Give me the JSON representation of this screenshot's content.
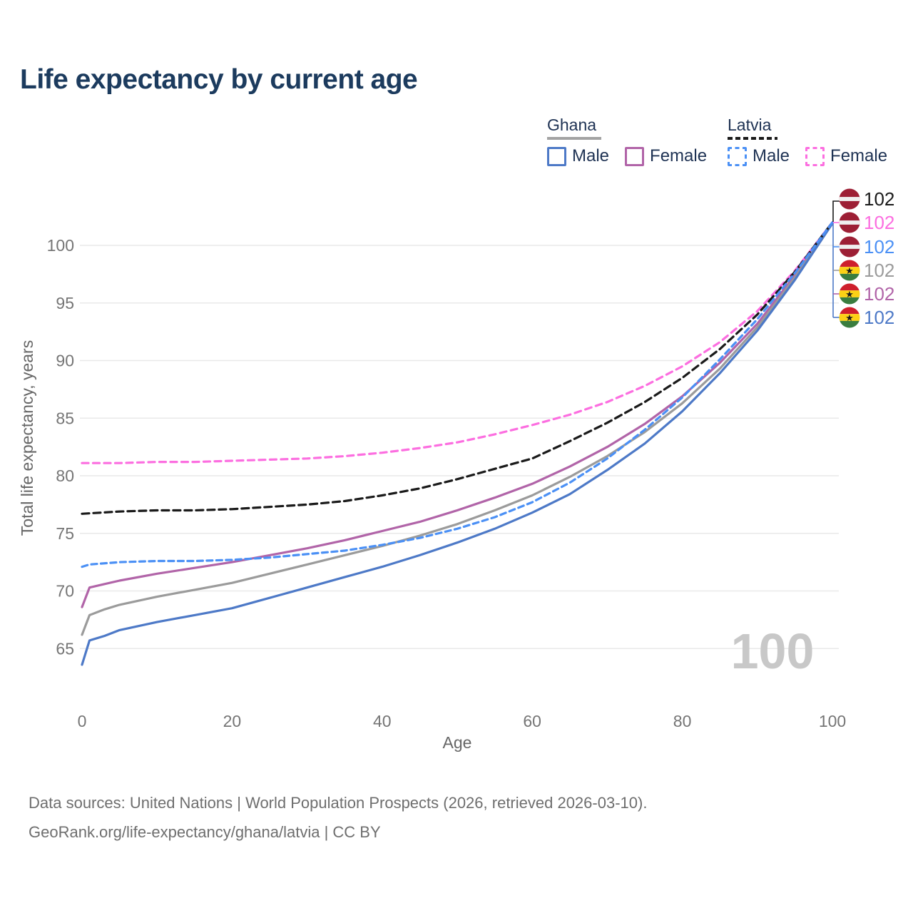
{
  "title": "Life expectancy by current age",
  "legend": {
    "ghana": {
      "label": "Ghana",
      "male": "Male",
      "female": "Female"
    },
    "latvia": {
      "label": "Latvia",
      "male": "Male",
      "female": "Female"
    }
  },
  "watermark_age": "100",
  "footer": {
    "line1": "Data sources: United Nations | World Population Prospects (2026, retrieved 2026-03-10).",
    "line2": "GeoRank.org/life-expectancy/ghana/latvia | CC BY"
  },
  "colors": {
    "ghana_male": "#4d79c7",
    "ghana_female": "#b164a8",
    "ghana_all": "#9b9b9b",
    "latvia_male": "#4b90f5",
    "latvia_female": "#fc6ee0",
    "latvia_all": "#1a1a1a",
    "grid": "#e9e9e9",
    "tick_text": "#757575",
    "title_text": "#1c3b5e",
    "watermark": "#c8c8c8"
  },
  "flags": {
    "latvia": {
      "red": "#9d1f35",
      "white": "#efefef"
    },
    "ghana": {
      "red": "#ce1f2c",
      "yellow": "#fcd116",
      "green": "#3a7d3f",
      "star": "#1a1a1a"
    }
  },
  "chart_data": {
    "type": "line",
    "title": "Life expectancy by current age",
    "xlabel": "Age",
    "ylabel": "Total life expectancy, years",
    "xlim": [
      0,
      100
    ],
    "ylim": [
      63,
      103
    ],
    "x_ticks": [
      0,
      20,
      40,
      60,
      80,
      100
    ],
    "y_ticks": [
      65,
      70,
      75,
      80,
      85,
      90,
      95,
      100
    ],
    "grid": "horizontal-only",
    "legend_position": "top-right",
    "current_frame_age": 100,
    "series": [
      {
        "id": "ghana-female",
        "name": "Ghana Female",
        "country": "Ghana",
        "sex": "Female",
        "color": "#b164a8",
        "dash": "",
        "points": [
          [
            0,
            68.6
          ],
          [
            1,
            70.3
          ],
          [
            3,
            70.6
          ],
          [
            5,
            70.9
          ],
          [
            10,
            71.5
          ],
          [
            15,
            72.0
          ],
          [
            20,
            72.5
          ],
          [
            25,
            73.1
          ],
          [
            30,
            73.7
          ],
          [
            35,
            74.4
          ],
          [
            40,
            75.2
          ],
          [
            45,
            76.0
          ],
          [
            50,
            77.0
          ],
          [
            55,
            78.1
          ],
          [
            60,
            79.3
          ],
          [
            65,
            80.8
          ],
          [
            70,
            82.5
          ],
          [
            75,
            84.5
          ],
          [
            80,
            86.9
          ],
          [
            85,
            89.8
          ],
          [
            90,
            93.2
          ],
          [
            95,
            97.4
          ],
          [
            100,
            101.9
          ]
        ]
      },
      {
        "id": "ghana-all",
        "name": "Ghana (both sexes)",
        "country": "Ghana",
        "sex": "All",
        "color": "#9b9b9b",
        "dash": "",
        "points": [
          [
            0,
            66.2
          ],
          [
            1,
            67.9
          ],
          [
            3,
            68.4
          ],
          [
            5,
            68.8
          ],
          [
            10,
            69.5
          ],
          [
            15,
            70.1
          ],
          [
            20,
            70.7
          ],
          [
            25,
            71.5
          ],
          [
            30,
            72.3
          ],
          [
            35,
            73.1
          ],
          [
            40,
            73.9
          ],
          [
            45,
            74.8
          ],
          [
            50,
            75.8
          ],
          [
            55,
            77.0
          ],
          [
            60,
            78.3
          ],
          [
            65,
            79.9
          ],
          [
            70,
            81.7
          ],
          [
            75,
            83.8
          ],
          [
            80,
            86.3
          ],
          [
            85,
            89.3
          ],
          [
            90,
            92.9
          ],
          [
            95,
            97.2
          ],
          [
            100,
            101.9
          ]
        ]
      },
      {
        "id": "ghana-male",
        "name": "Ghana Male",
        "country": "Ghana",
        "sex": "Male",
        "color": "#4d79c7",
        "dash": "",
        "points": [
          [
            0,
            63.6
          ],
          [
            1,
            65.7
          ],
          [
            3,
            66.1
          ],
          [
            5,
            66.6
          ],
          [
            10,
            67.3
          ],
          [
            15,
            67.9
          ],
          [
            20,
            68.5
          ],
          [
            25,
            69.4
          ],
          [
            30,
            70.3
          ],
          [
            35,
            71.2
          ],
          [
            40,
            72.1
          ],
          [
            45,
            73.1
          ],
          [
            50,
            74.2
          ],
          [
            55,
            75.4
          ],
          [
            60,
            76.8
          ],
          [
            65,
            78.4
          ],
          [
            70,
            80.5
          ],
          [
            75,
            82.8
          ],
          [
            80,
            85.6
          ],
          [
            85,
            88.9
          ],
          [
            90,
            92.6
          ],
          [
            95,
            97.0
          ],
          [
            100,
            101.9
          ]
        ]
      },
      {
        "id": "latvia-female",
        "name": "Latvia Female",
        "country": "Latvia",
        "sex": "Female",
        "color": "#fc6ee0",
        "dash": "9 6.5",
        "points": [
          [
            0,
            81.1
          ],
          [
            5,
            81.1
          ],
          [
            10,
            81.2
          ],
          [
            15,
            81.2
          ],
          [
            20,
            81.3
          ],
          [
            25,
            81.4
          ],
          [
            30,
            81.5
          ],
          [
            35,
            81.7
          ],
          [
            40,
            82.0
          ],
          [
            45,
            82.4
          ],
          [
            50,
            82.9
          ],
          [
            55,
            83.6
          ],
          [
            60,
            84.4
          ],
          [
            65,
            85.3
          ],
          [
            70,
            86.4
          ],
          [
            75,
            87.8
          ],
          [
            80,
            89.5
          ],
          [
            85,
            91.6
          ],
          [
            90,
            94.3
          ],
          [
            95,
            97.8
          ],
          [
            100,
            102.0
          ]
        ]
      },
      {
        "id": "latvia-all",
        "name": "Latvia (both sexes)",
        "country": "Latvia",
        "sex": "All",
        "color": "#1a1a1a",
        "dash": "10 6",
        "points": [
          [
            0,
            76.7
          ],
          [
            5,
            76.9
          ],
          [
            10,
            77.0
          ],
          [
            15,
            77.0
          ],
          [
            20,
            77.1
          ],
          [
            25,
            77.3
          ],
          [
            30,
            77.5
          ],
          [
            35,
            77.8
          ],
          [
            40,
            78.3
          ],
          [
            45,
            78.9
          ],
          [
            50,
            79.7
          ],
          [
            55,
            80.6
          ],
          [
            60,
            81.5
          ],
          [
            65,
            83.0
          ],
          [
            70,
            84.6
          ],
          [
            75,
            86.4
          ],
          [
            80,
            88.5
          ],
          [
            85,
            91.0
          ],
          [
            90,
            94.0
          ],
          [
            95,
            97.7
          ],
          [
            100,
            102.0
          ]
        ]
      },
      {
        "id": "latvia-male",
        "name": "Latvia Male",
        "country": "Latvia",
        "sex": "Male",
        "color": "#4b90f5",
        "dash": "8 5.5",
        "points": [
          [
            0,
            72.1
          ],
          [
            1,
            72.3
          ],
          [
            5,
            72.5
          ],
          [
            10,
            72.6
          ],
          [
            15,
            72.6
          ],
          [
            20,
            72.7
          ],
          [
            25,
            72.9
          ],
          [
            30,
            73.2
          ],
          [
            35,
            73.5
          ],
          [
            40,
            74.0
          ],
          [
            45,
            74.6
          ],
          [
            50,
            75.4
          ],
          [
            55,
            76.4
          ],
          [
            60,
            77.7
          ],
          [
            65,
            79.4
          ],
          [
            70,
            81.5
          ],
          [
            75,
            84.0
          ],
          [
            80,
            86.8
          ],
          [
            85,
            90.1
          ],
          [
            90,
            93.6
          ],
          [
            95,
            97.6
          ],
          [
            100,
            102.0
          ]
        ]
      }
    ],
    "end_labels": [
      {
        "series": "Latvia (both sexes)",
        "flag": "latvia",
        "value": "102",
        "color": "#1a1a1a"
      },
      {
        "series": "Latvia Female",
        "flag": "latvia",
        "value": "102",
        "color": "#fc6ee0"
      },
      {
        "series": "Latvia Male",
        "flag": "latvia",
        "value": "102",
        "color": "#4b90f5"
      },
      {
        "series": "Ghana (both sexes)",
        "flag": "ghana",
        "value": "102",
        "color": "#9b9b9b"
      },
      {
        "series": "Ghana Female",
        "flag": "ghana",
        "value": "102",
        "color": "#b164a8"
      },
      {
        "series": "Ghana Male",
        "flag": "ghana",
        "value": "102",
        "color": "#4d79c7"
      }
    ]
  }
}
